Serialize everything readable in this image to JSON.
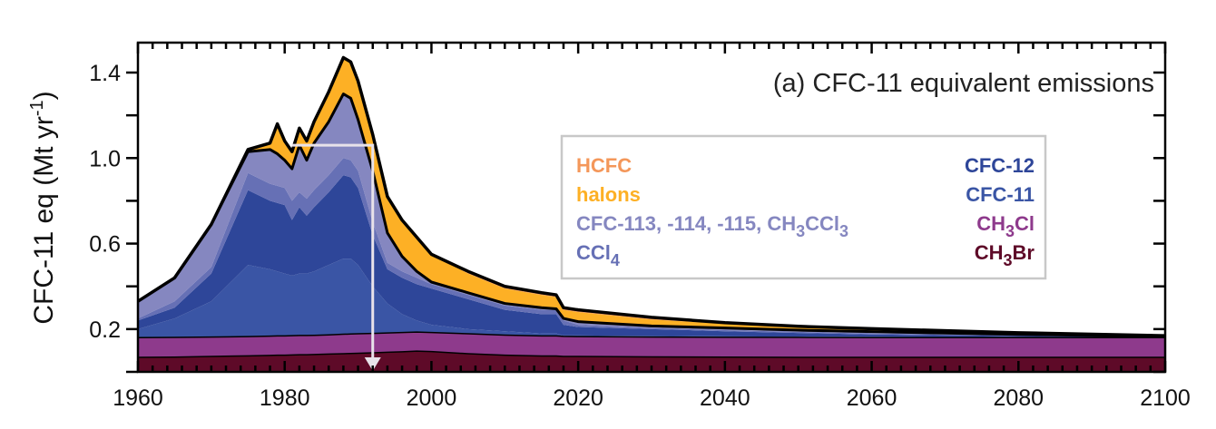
{
  "chart_data": {
    "type": "area",
    "stacked": true,
    "title": "(a) CFC-11 equivalent emissions",
    "xlabel": "",
    "ylabel": "CFC-11 eq (Mt yr",
    "ylabel_sup": "-1",
    "ylabel_close": ")",
    "xlim": [
      1960,
      2100
    ],
    "ylim": [
      0,
      1.54
    ],
    "xticks": [
      "1960",
      "1980",
      "2000",
      "2020",
      "2040",
      "2060",
      "2080",
      "2100"
    ],
    "yticks": [
      "0.2",
      "0.6",
      "1.0",
      "1.4"
    ],
    "grid": false,
    "legend_position": "center-right",
    "x": [
      1960,
      1965,
      1970,
      1975,
      1978,
      1979,
      1980,
      1981,
      1982,
      1983,
      1984,
      1986,
      1988,
      1989,
      1990,
      1992,
      1994,
      1996,
      1998,
      2000,
      2005,
      2010,
      2015,
      2017,
      2018,
      2020,
      2030,
      2040,
      2050,
      2060,
      2080,
      2100
    ],
    "series": [
      {
        "name": "CH3Br",
        "color": "#5e0a28",
        "values": [
          0.068,
          0.069,
          0.072,
          0.075,
          0.077,
          0.078,
          0.078,
          0.079,
          0.08,
          0.08,
          0.081,
          0.083,
          0.085,
          0.086,
          0.087,
          0.089,
          0.092,
          0.094,
          0.097,
          0.095,
          0.085,
          0.078,
          0.074,
          0.074,
          0.072,
          0.072,
          0.07,
          0.069,
          0.068,
          0.068,
          0.068,
          0.068
        ]
      },
      {
        "name": "CH3Cl",
        "color": "#8e3a8c",
        "values": [
          0.092,
          0.092,
          0.091,
          0.09,
          0.09,
          0.09,
          0.09,
          0.09,
          0.09,
          0.09,
          0.09,
          0.09,
          0.091,
          0.091,
          0.091,
          0.091,
          0.09,
          0.09,
          0.089,
          0.089,
          0.093,
          0.094,
          0.094,
          0.094,
          0.094,
          0.093,
          0.093,
          0.093,
          0.093,
          0.092,
          0.092,
          0.092
        ]
      },
      {
        "name": "CFC-11",
        "color": "#3a55a5",
        "values": [
          0.04,
          0.089,
          0.167,
          0.335,
          0.313,
          0.302,
          0.292,
          0.281,
          0.29,
          0.29,
          0.299,
          0.327,
          0.354,
          0.353,
          0.322,
          0.22,
          0.138,
          0.086,
          0.054,
          0.036,
          0.022,
          0.018,
          0.012,
          0.012,
          0.004,
          0.005,
          0.005,
          0.004,
          0.004,
          0.004,
          0.002,
          0.001
        ]
      },
      {
        "name": "CFC-12",
        "color": "#2e4699",
        "values": [
          0.04,
          0.05,
          0.13,
          0.35,
          0.32,
          0.32,
          0.32,
          0.26,
          0.31,
          0.27,
          0.3,
          0.34,
          0.39,
          0.38,
          0.36,
          0.24,
          0.16,
          0.17,
          0.17,
          0.17,
          0.14,
          0.1,
          0.09,
          0.09,
          0.05,
          0.04,
          0.032,
          0.024,
          0.017,
          0.011,
          0.006,
          0.002
        ]
      },
      {
        "name": "CCl4",
        "color": "#6670b5",
        "values": [
          0.01,
          0.03,
          0.03,
          0.08,
          0.08,
          0.08,
          0.08,
          0.09,
          0.07,
          0.08,
          0.08,
          0.08,
          0.08,
          0.08,
          0.08,
          0.06,
          0.03,
          0.03,
          0.03,
          0.02,
          0.02,
          0.02,
          0.02,
          0.02,
          0.02,
          0.01,
          0.005,
          0.005,
          0.005,
          0.005,
          0.002,
          0.001
        ]
      },
      {
        "name": "CFC-113, -114, -115, CH3CCl3",
        "color": "#8587c0",
        "values": [
          0.08,
          0.11,
          0.2,
          0.1,
          0.16,
          0.15,
          0.13,
          0.15,
          0.22,
          0.18,
          0.22,
          0.25,
          0.3,
          0.29,
          0.24,
          0.24,
          0.14,
          0.07,
          0.03,
          0.01,
          0.01,
          0.01,
          0.01,
          0.005,
          0.01,
          0.015,
          0.01,
          0.01,
          0.008,
          0.008,
          0.005,
          0.002
        ]
      },
      {
        "name": "halons",
        "color": "#fdb025",
        "values": [
          0,
          0,
          0,
          0.01,
          0.03,
          0.14,
          0.09,
          0.08,
          0.08,
          0.09,
          0.1,
          0.14,
          0.17,
          0.17,
          0.18,
          0.17,
          0.17,
          0.17,
          0.16,
          0.13,
          0.09,
          0.07,
          0.06,
          0.055,
          0.04,
          0.045,
          0.03,
          0.02,
          0.015,
          0.012,
          0.007,
          0.002
        ]
      },
      {
        "name": "HCFC",
        "color": "#f4975a",
        "values": [
          0,
          0,
          0,
          0,
          0,
          0,
          0,
          0,
          0,
          0,
          0,
          0,
          0,
          0,
          0,
          0,
          0,
          0,
          0,
          0,
          0.01,
          0.01,
          0.01,
          0.01,
          0.01,
          0.01,
          0.01,
          0.005,
          0.003,
          0.002,
          0.001,
          0.001
        ]
      }
    ],
    "legend": {
      "left": [
        {
          "label": "HCFC",
          "sub": "",
          "tail": "",
          "color": "#f4975a"
        },
        {
          "label": "halons",
          "sub": "",
          "tail": "",
          "color": "#fdb025"
        },
        {
          "label": "CFC-113, -114, -115, CH",
          "sub": "3",
          "tail": "CCl",
          "sub2": "3",
          "color": "#8587c0"
        },
        {
          "label": "CCl",
          "sub": "4",
          "tail": "",
          "color": "#6670b5"
        }
      ],
      "right": [
        {
          "label": "CFC-12",
          "sub": "",
          "tail": "",
          "color": "#2e4699"
        },
        {
          "label": "CFC-11",
          "sub": "",
          "tail": "",
          "color": "#3a55a5"
        },
        {
          "label": "CH",
          "sub": "3",
          "tail": "Cl",
          "color": "#8e3a8c"
        },
        {
          "label": "CH",
          "sub": "3",
          "tail": "Br",
          "color": "#5e0a28"
        }
      ]
    },
    "annotation": {
      "type": "arrow",
      "color": "#e8e2ea",
      "x_start": 1981,
      "x_turn": 1992,
      "y_level": 1.06
    }
  }
}
